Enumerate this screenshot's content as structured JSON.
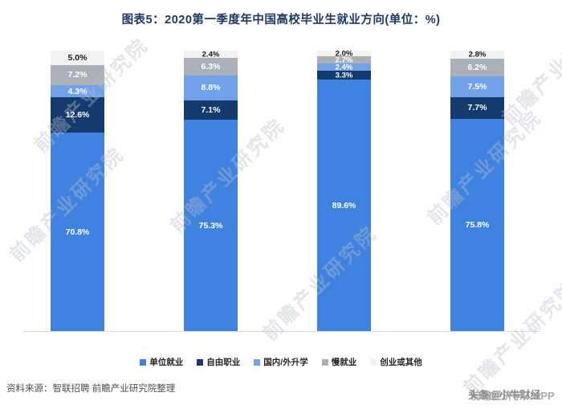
{
  "header": {
    "title": "图表5：2020第一季度年中国高校毕业生就业方向(单位：%)",
    "title_color": "#1F3864"
  },
  "chart_data": {
    "type": "bar",
    "stacked": true,
    "unit": "%",
    "title": "图表5：2020第一季度年中国高校毕业生就业方向(单位：%)",
    "categories": [
      "",
      "",
      "",
      ""
    ],
    "ylim": [
      0,
      100
    ],
    "grid": false,
    "legend_position": "bottom",
    "series": [
      {
        "name": "单位就业",
        "color": "#4082E0",
        "label_color": "#FFFFFF",
        "values": [
          70.8,
          75.3,
          89.6,
          75.8
        ]
      },
      {
        "name": "自由职业",
        "color": "#143A6E",
        "label_color": "#FFFFFF",
        "values": [
          12.6,
          7.1,
          3.3,
          7.7
        ]
      },
      {
        "name": "国内/外升学",
        "color": "#71A1E8",
        "label_color": "#FFFFFF",
        "values": [
          4.3,
          8.8,
          2.4,
          7.5
        ]
      },
      {
        "name": "慢就业",
        "color": "#ACB0B7",
        "label_color": "#FFFFFF",
        "values": [
          7.2,
          6.3,
          2.7,
          6.2
        ]
      },
      {
        "name": "创业或其他",
        "color": "#F2F2F3",
        "label_color": "#1A1A1A",
        "values": [
          5.0,
          2.4,
          2.0,
          2.8
        ]
      }
    ]
  },
  "footer": {
    "source": "资料来源：智联招聘 前瞻产业研究院整理"
  },
  "watermark": {
    "diagonal_text": "前瞻产业研究院",
    "bottom_right_texts": [
      "前瞻经济学人APP",
      "头条@小牛财经"
    ]
  }
}
